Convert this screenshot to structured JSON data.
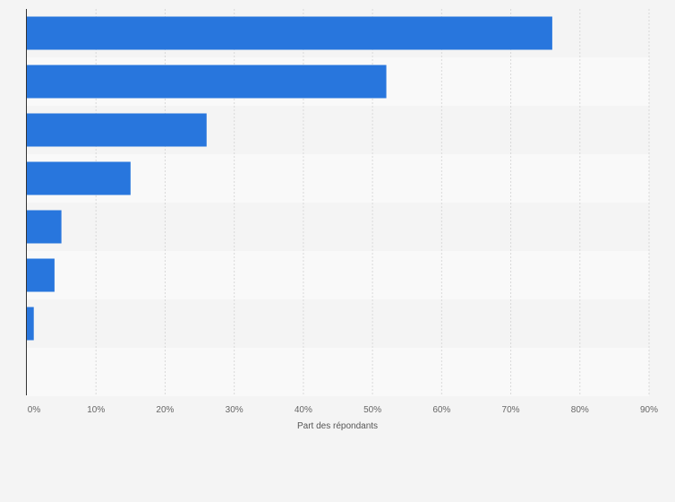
{
  "chart_data": {
    "type": "bar",
    "orientation": "horizontal",
    "title": "",
    "xlabel": "Part des répondants",
    "ylabel": "",
    "categories": [
      "",
      "",
      "",
      "",
      "",
      "",
      "",
      ""
    ],
    "values": [
      76,
      52,
      26,
      15,
      5,
      4,
      1,
      null
    ],
    "xlim": [
      0,
      90
    ],
    "x_ticks": [
      "0%",
      "10%",
      "20%",
      "30%",
      "40%",
      "50%",
      "60%",
      "70%",
      "80%",
      "90%"
    ],
    "grid": true,
    "legend": "none",
    "colors": {
      "bar": "#2876dd",
      "band_a": "#f4f4f4",
      "band_b": "#f9f9f9",
      "grid": "#d9d9d9",
      "axis": "#333333"
    }
  }
}
